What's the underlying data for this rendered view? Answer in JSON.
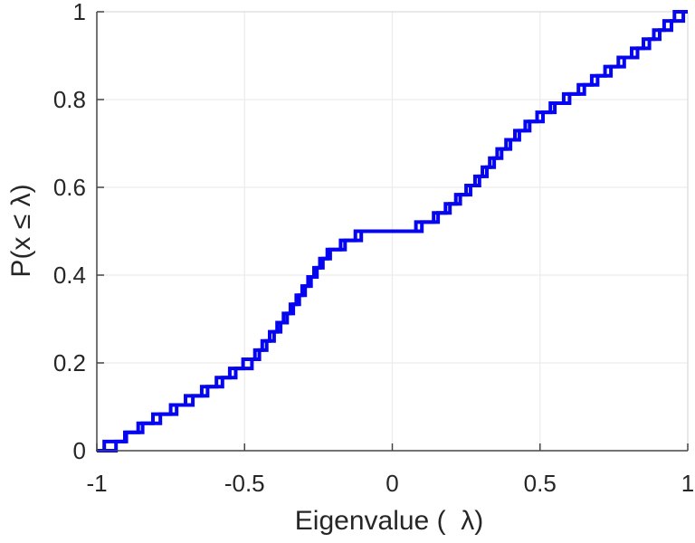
{
  "chart_data": {
    "type": "line",
    "subtype": "empirical-cdf-staircase",
    "title": "",
    "xlabel": "Eigenvalue (  λ)",
    "ylabel": "P(x ≤ λ)",
    "xlim": [
      -1,
      1
    ],
    "ylim": [
      0,
      1
    ],
    "grid": true,
    "legend": false,
    "xticks": {
      "values": [
        -1,
        -0.5,
        0,
        0.5,
        1
      ],
      "labels": [
        "-1",
        "-0.5",
        "0",
        "0.5",
        "1"
      ]
    },
    "yticks": {
      "values": [
        0,
        0.2,
        0.4,
        0.6,
        0.8,
        1
      ],
      "labels": [
        "0",
        "0.2",
        "0.4",
        "0.6",
        "0.8",
        "1"
      ]
    },
    "series": [
      {
        "cdf_start": 0,
        "cdf_end": 1,
        "eigenvalues": [
          -0.975,
          -0.9,
          -0.845,
          -0.785,
          -0.73,
          -0.675,
          -0.625,
          -0.575,
          -0.53,
          -0.475,
          -0.45,
          -0.425,
          -0.4,
          -0.378,
          -0.356,
          -0.335,
          -0.315,
          -0.295,
          -0.275,
          -0.255,
          -0.235,
          -0.21,
          -0.175,
          -0.125,
          0.08,
          0.14,
          0.18,
          0.215,
          0.25,
          0.28,
          0.305,
          0.33,
          0.355,
          0.385,
          0.415,
          0.45,
          0.49,
          0.535,
          0.58,
          0.63,
          0.675,
          0.72,
          0.765,
          0.81,
          0.85,
          0.885,
          0.92,
          0.955
        ]
      },
      {
        "cdf_start": 0,
        "cdf_end": 1,
        "eigenvalues": [
          -0.935,
          -0.905,
          -0.86,
          -0.81,
          -0.75,
          -0.7,
          -0.645,
          -0.595,
          -0.55,
          -0.505,
          -0.465,
          -0.44,
          -0.415,
          -0.39,
          -0.368,
          -0.345,
          -0.325,
          -0.305,
          -0.285,
          -0.265,
          -0.245,
          -0.22,
          -0.16,
          -0.105,
          0.1,
          0.155,
          0.195,
          0.23,
          0.265,
          0.295,
          0.32,
          0.345,
          0.37,
          0.4,
          0.43,
          0.465,
          0.51,
          0.55,
          0.6,
          0.65,
          0.695,
          0.74,
          0.785,
          0.83,
          0.87,
          0.905,
          0.945,
          0.985
        ]
      }
    ]
  },
  "colors": {
    "line": "#0505f0",
    "axis": "#454545",
    "box_far_edge": "#dcdcdc",
    "grid": "#ececec",
    "tick_text": "#262626",
    "background": "#ffffff"
  }
}
